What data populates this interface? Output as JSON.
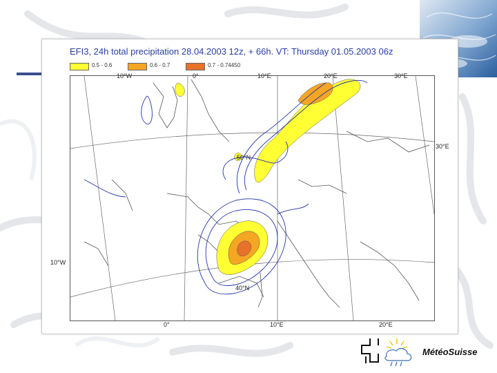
{
  "map": {
    "title": "EFI3, 24h total precipitation 28.04.2003 12z, + 66h. VT: Thursday  01.05.2003 06z",
    "legend": [
      {
        "label": "0.5 - 0.6",
        "color": "#ffff33"
      },
      {
        "label": "0.6 - 0.7",
        "color": "#f5a623"
      },
      {
        "label": "0.7 - 0.74450",
        "color": "#e8712a"
      }
    ],
    "longitude_labels_top": [
      "10°W",
      "0°",
      "10°E",
      "20°E",
      "30°E"
    ],
    "longitude_labels_bottom": [
      "0°",
      "10°E",
      "20°E"
    ],
    "latitude_labels": [
      "50°N",
      "40°N"
    ],
    "edge_labels": {
      "right": "30°E",
      "left": "10°W"
    },
    "colors": {
      "lines": "#2233aa",
      "coast": "#555555"
    }
  },
  "branding": {
    "name": "MétéoSuisse"
  }
}
